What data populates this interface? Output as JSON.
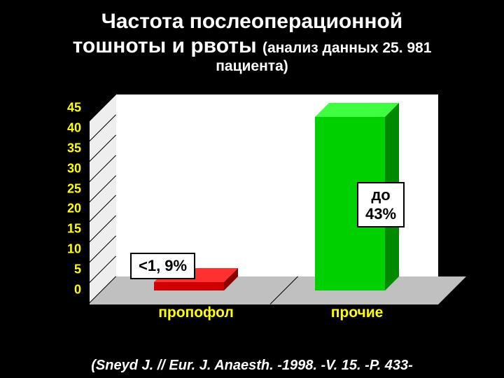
{
  "title": {
    "line1": "Частота послеоперационной",
    "line2_main": "тошноты и рвоты",
    "sub1": "(анализ данных 25. 981",
    "sub2": "пациента)",
    "color": "#ffffff"
  },
  "chart": {
    "type": "bar-3d",
    "ylim": [
      0,
      45
    ],
    "ytick_step": 5,
    "yticks": [
      0,
      5,
      10,
      15,
      20,
      25,
      30,
      35,
      40,
      45
    ],
    "ytick_fontsize": 18,
    "ytick_color": "#ffff00",
    "xlabel_color": "#ffff00",
    "xlabel_fontsize": 21,
    "backwall_color": "#ffffff",
    "floor_color": "#c0c0c0",
    "grid_color": "#000000",
    "bars": [
      {
        "category": "пропофол",
        "value": 2,
        "front_color": "#d00000",
        "top_color": "#ff3030",
        "side_color": "#8a0000",
        "callout": "<1, 9%"
      },
      {
        "category": "прочие",
        "value": 43,
        "front_color": "#00d000",
        "top_color": "#40ff40",
        "side_color": "#008a00",
        "callout_line1": "до",
        "callout_line2": "43%"
      }
    ]
  },
  "citation": "(Sneyd J. // Eur. J. Anaesth. -1998. -V. 15. -P. 433-"
}
